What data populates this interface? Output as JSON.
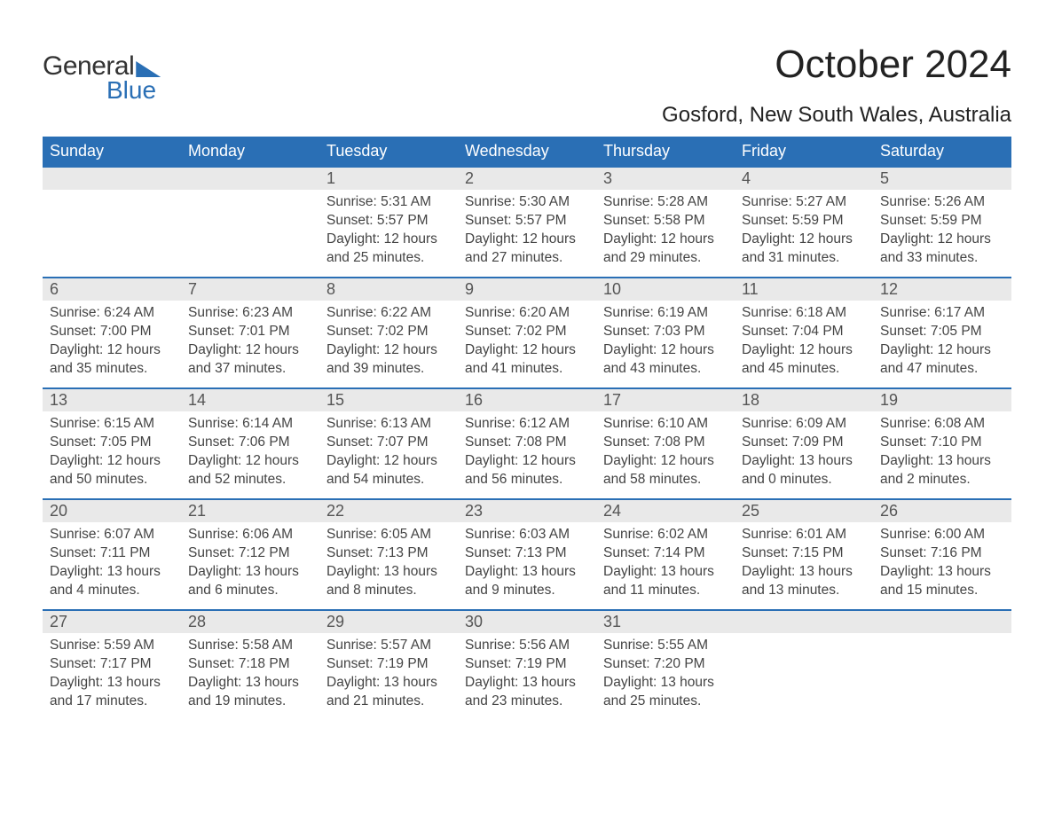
{
  "brand": {
    "part1": "General",
    "part2": "Blue",
    "accent_color": "#2a6fb5"
  },
  "title": "October 2024",
  "location": "Gosford, New South Wales, Australia",
  "weekdays": [
    "Sunday",
    "Monday",
    "Tuesday",
    "Wednesday",
    "Thursday",
    "Friday",
    "Saturday"
  ],
  "colors": {
    "header_bg": "#2a6fb5",
    "header_text": "#ffffff",
    "daynum_bg": "#e9e9e9",
    "border_accent": "#2a6fb5",
    "background": "#ffffff",
    "text": "#333333"
  },
  "weeks": [
    [
      {
        "day": "",
        "sunrise": "",
        "sunset": "",
        "daylight1": "",
        "daylight2": ""
      },
      {
        "day": "",
        "sunrise": "",
        "sunset": "",
        "daylight1": "",
        "daylight2": ""
      },
      {
        "day": "1",
        "sunrise": "Sunrise: 5:31 AM",
        "sunset": "Sunset: 5:57 PM",
        "daylight1": "Daylight: 12 hours",
        "daylight2": "and 25 minutes."
      },
      {
        "day": "2",
        "sunrise": "Sunrise: 5:30 AM",
        "sunset": "Sunset: 5:57 PM",
        "daylight1": "Daylight: 12 hours",
        "daylight2": "and 27 minutes."
      },
      {
        "day": "3",
        "sunrise": "Sunrise: 5:28 AM",
        "sunset": "Sunset: 5:58 PM",
        "daylight1": "Daylight: 12 hours",
        "daylight2": "and 29 minutes."
      },
      {
        "day": "4",
        "sunrise": "Sunrise: 5:27 AM",
        "sunset": "Sunset: 5:59 PM",
        "daylight1": "Daylight: 12 hours",
        "daylight2": "and 31 minutes."
      },
      {
        "day": "5",
        "sunrise": "Sunrise: 5:26 AM",
        "sunset": "Sunset: 5:59 PM",
        "daylight1": "Daylight: 12 hours",
        "daylight2": "and 33 minutes."
      }
    ],
    [
      {
        "day": "6",
        "sunrise": "Sunrise: 6:24 AM",
        "sunset": "Sunset: 7:00 PM",
        "daylight1": "Daylight: 12 hours",
        "daylight2": "and 35 minutes."
      },
      {
        "day": "7",
        "sunrise": "Sunrise: 6:23 AM",
        "sunset": "Sunset: 7:01 PM",
        "daylight1": "Daylight: 12 hours",
        "daylight2": "and 37 minutes."
      },
      {
        "day": "8",
        "sunrise": "Sunrise: 6:22 AM",
        "sunset": "Sunset: 7:02 PM",
        "daylight1": "Daylight: 12 hours",
        "daylight2": "and 39 minutes."
      },
      {
        "day": "9",
        "sunrise": "Sunrise: 6:20 AM",
        "sunset": "Sunset: 7:02 PM",
        "daylight1": "Daylight: 12 hours",
        "daylight2": "and 41 minutes."
      },
      {
        "day": "10",
        "sunrise": "Sunrise: 6:19 AM",
        "sunset": "Sunset: 7:03 PM",
        "daylight1": "Daylight: 12 hours",
        "daylight2": "and 43 minutes."
      },
      {
        "day": "11",
        "sunrise": "Sunrise: 6:18 AM",
        "sunset": "Sunset: 7:04 PM",
        "daylight1": "Daylight: 12 hours",
        "daylight2": "and 45 minutes."
      },
      {
        "day": "12",
        "sunrise": "Sunrise: 6:17 AM",
        "sunset": "Sunset: 7:05 PM",
        "daylight1": "Daylight: 12 hours",
        "daylight2": "and 47 minutes."
      }
    ],
    [
      {
        "day": "13",
        "sunrise": "Sunrise: 6:15 AM",
        "sunset": "Sunset: 7:05 PM",
        "daylight1": "Daylight: 12 hours",
        "daylight2": "and 50 minutes."
      },
      {
        "day": "14",
        "sunrise": "Sunrise: 6:14 AM",
        "sunset": "Sunset: 7:06 PM",
        "daylight1": "Daylight: 12 hours",
        "daylight2": "and 52 minutes."
      },
      {
        "day": "15",
        "sunrise": "Sunrise: 6:13 AM",
        "sunset": "Sunset: 7:07 PM",
        "daylight1": "Daylight: 12 hours",
        "daylight2": "and 54 minutes."
      },
      {
        "day": "16",
        "sunrise": "Sunrise: 6:12 AM",
        "sunset": "Sunset: 7:08 PM",
        "daylight1": "Daylight: 12 hours",
        "daylight2": "and 56 minutes."
      },
      {
        "day": "17",
        "sunrise": "Sunrise: 6:10 AM",
        "sunset": "Sunset: 7:08 PM",
        "daylight1": "Daylight: 12 hours",
        "daylight2": "and 58 minutes."
      },
      {
        "day": "18",
        "sunrise": "Sunrise: 6:09 AM",
        "sunset": "Sunset: 7:09 PM",
        "daylight1": "Daylight: 13 hours",
        "daylight2": "and 0 minutes."
      },
      {
        "day": "19",
        "sunrise": "Sunrise: 6:08 AM",
        "sunset": "Sunset: 7:10 PM",
        "daylight1": "Daylight: 13 hours",
        "daylight2": "and 2 minutes."
      }
    ],
    [
      {
        "day": "20",
        "sunrise": "Sunrise: 6:07 AM",
        "sunset": "Sunset: 7:11 PM",
        "daylight1": "Daylight: 13 hours",
        "daylight2": "and 4 minutes."
      },
      {
        "day": "21",
        "sunrise": "Sunrise: 6:06 AM",
        "sunset": "Sunset: 7:12 PM",
        "daylight1": "Daylight: 13 hours",
        "daylight2": "and 6 minutes."
      },
      {
        "day": "22",
        "sunrise": "Sunrise: 6:05 AM",
        "sunset": "Sunset: 7:13 PM",
        "daylight1": "Daylight: 13 hours",
        "daylight2": "and 8 minutes."
      },
      {
        "day": "23",
        "sunrise": "Sunrise: 6:03 AM",
        "sunset": "Sunset: 7:13 PM",
        "daylight1": "Daylight: 13 hours",
        "daylight2": "and 9 minutes."
      },
      {
        "day": "24",
        "sunrise": "Sunrise: 6:02 AM",
        "sunset": "Sunset: 7:14 PM",
        "daylight1": "Daylight: 13 hours",
        "daylight2": "and 11 minutes."
      },
      {
        "day": "25",
        "sunrise": "Sunrise: 6:01 AM",
        "sunset": "Sunset: 7:15 PM",
        "daylight1": "Daylight: 13 hours",
        "daylight2": "and 13 minutes."
      },
      {
        "day": "26",
        "sunrise": "Sunrise: 6:00 AM",
        "sunset": "Sunset: 7:16 PM",
        "daylight1": "Daylight: 13 hours",
        "daylight2": "and 15 minutes."
      }
    ],
    [
      {
        "day": "27",
        "sunrise": "Sunrise: 5:59 AM",
        "sunset": "Sunset: 7:17 PM",
        "daylight1": "Daylight: 13 hours",
        "daylight2": "and 17 minutes."
      },
      {
        "day": "28",
        "sunrise": "Sunrise: 5:58 AM",
        "sunset": "Sunset: 7:18 PM",
        "daylight1": "Daylight: 13 hours",
        "daylight2": "and 19 minutes."
      },
      {
        "day": "29",
        "sunrise": "Sunrise: 5:57 AM",
        "sunset": "Sunset: 7:19 PM",
        "daylight1": "Daylight: 13 hours",
        "daylight2": "and 21 minutes."
      },
      {
        "day": "30",
        "sunrise": "Sunrise: 5:56 AM",
        "sunset": "Sunset: 7:19 PM",
        "daylight1": "Daylight: 13 hours",
        "daylight2": "and 23 minutes."
      },
      {
        "day": "31",
        "sunrise": "Sunrise: 5:55 AM",
        "sunset": "Sunset: 7:20 PM",
        "daylight1": "Daylight: 13 hours",
        "daylight2": "and 25 minutes."
      },
      {
        "day": "",
        "sunrise": "",
        "sunset": "",
        "daylight1": "",
        "daylight2": ""
      },
      {
        "day": "",
        "sunrise": "",
        "sunset": "",
        "daylight1": "",
        "daylight2": ""
      }
    ]
  ]
}
